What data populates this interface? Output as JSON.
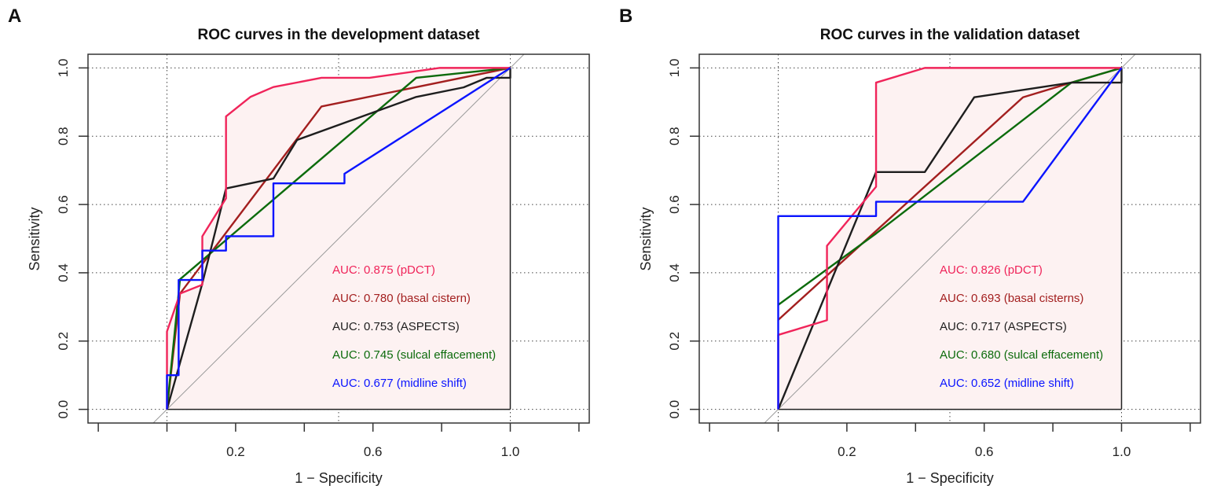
{
  "chart_data": [
    {
      "type": "line",
      "panel_label": "A",
      "title": "ROC curves in the development dataset",
      "xlabel": "1 − Specificity",
      "ylabel": "Sensitivity",
      "xlim": [
        -0.23,
        1.23
      ],
      "ylim": [
        -0.04,
        1.04
      ],
      "xticks": [
        -0.2,
        0,
        0.2,
        0.4,
        0.6,
        0.8,
        1.0,
        1.2
      ],
      "xtick_labels": [
        "0.2",
        "0.6",
        "1.0"
      ],
      "xtick_label_values": [
        0.2,
        0.6,
        1.0
      ],
      "yticks": [
        "0.0",
        "0.2",
        "0.4",
        "0.6",
        "0.8",
        "1.0"
      ],
      "grid": "dotted",
      "diagonal_reference": true,
      "shaded_under": "pDCT",
      "legend_position": "bottom-right",
      "series": [
        {
          "name": "AUC: 0.875 (pDCT)",
          "color": "#f0245a",
          "x": [
            0,
            0,
            0.038,
            0.103,
            0.103,
            0.172,
            0.172,
            0.243,
            0.31,
            0.45,
            0.59,
            0.795,
            1
          ],
          "y": [
            0,
            0.228,
            0.339,
            0.365,
            0.507,
            0.618,
            0.858,
            0.915,
            0.944,
            0.971,
            0.971,
            1,
            1
          ]
        },
        {
          "name": "AUC: 0.780 (basal cistern)",
          "color": "#a31f1f",
          "x": [
            0,
            0.038,
            0.45,
            1
          ],
          "y": [
            0,
            0.339,
            0.887,
            1
          ]
        },
        {
          "name": "AUC: 0.753 (ASPECTS)",
          "color": "#1e1e1e",
          "x": [
            0,
            0.103,
            0.172,
            0.31,
            0.379,
            0.726,
            0.864,
            0.931,
            1,
            1
          ],
          "y": [
            0,
            0.369,
            0.647,
            0.676,
            0.789,
            0.915,
            0.943,
            0.971,
            0.971,
            1
          ]
        },
        {
          "name": "AUC: 0.745 (sulcal effacement)",
          "color": "#0c6b0c",
          "x": [
            0,
            0.038,
            0.726,
            1
          ],
          "y": [
            0,
            0.381,
            0.971,
            1
          ]
        },
        {
          "name": "AUC: 0.677 (midline shift)",
          "color": "#0a14ff",
          "x": [
            0,
            0,
            0.034,
            0.034,
            0.103,
            0.103,
            0.172,
            0.172,
            0.31,
            0.31,
            0.517,
            0.517,
            1
          ],
          "y": [
            0,
            0.1,
            0.1,
            0.379,
            0.379,
            0.465,
            0.465,
            0.507,
            0.507,
            0.662,
            0.662,
            0.69,
            1
          ]
        }
      ]
    },
    {
      "type": "line",
      "panel_label": "B",
      "title": "ROC curves in the validation dataset",
      "xlabel": "1 − Specificity",
      "ylabel": "Sensitivity",
      "xlim": [
        -0.23,
        1.23
      ],
      "ylim": [
        -0.04,
        1.04
      ],
      "xticks": [
        -0.2,
        0,
        0.2,
        0.4,
        0.6,
        0.8,
        1.0,
        1.2
      ],
      "xtick_labels": [
        "0.2",
        "0.6",
        "1.0"
      ],
      "xtick_label_values": [
        0.2,
        0.6,
        1.0
      ],
      "yticks": [
        "0.0",
        "0.2",
        "0.4",
        "0.6",
        "0.8",
        "1.0"
      ],
      "grid": "dotted",
      "diagonal_reference": true,
      "shaded_under": "pDCT",
      "legend_position": "bottom-right",
      "series": [
        {
          "name": "AUC: 0.826 (pDCT)",
          "color": "#f0245a",
          "x": [
            0,
            0,
            0.142,
            0.142,
            0.285,
            0.285,
            0.427,
            1
          ],
          "y": [
            0,
            0.218,
            0.261,
            0.479,
            0.652,
            0.957,
            1,
            1
          ]
        },
        {
          "name": "AUC: 0.693 (basal cisterns)",
          "color": "#a31f1f",
          "x": [
            0,
            0.713,
            0.854,
            1
          ],
          "y": [
            0.262,
            0.914,
            0.957,
            1
          ]
        },
        {
          "name": "AUC: 0.717 (ASPECTS)",
          "color": "#1e1e1e",
          "x": [
            0,
            0.285,
            0.427,
            0.571,
            0.854,
            1,
            1
          ],
          "y": [
            0,
            0.695,
            0.695,
            0.914,
            0.957,
            0.957,
            1
          ]
        },
        {
          "name": "AUC: 0.680 (sulcal effacement)",
          "color": "#0c6b0c",
          "x": [
            0,
            0.285,
            0.854,
            1
          ],
          "y": [
            0.306,
            0.515,
            0.957,
            1
          ]
        },
        {
          "name": "AUC: 0.652 (midline shift)",
          "color": "#0a14ff",
          "x": [
            0,
            0,
            0.285,
            0.285,
            0.713,
            1
          ],
          "y": [
            0,
            0.566,
            0.566,
            0.608,
            0.608,
            1
          ]
        }
      ]
    }
  ]
}
